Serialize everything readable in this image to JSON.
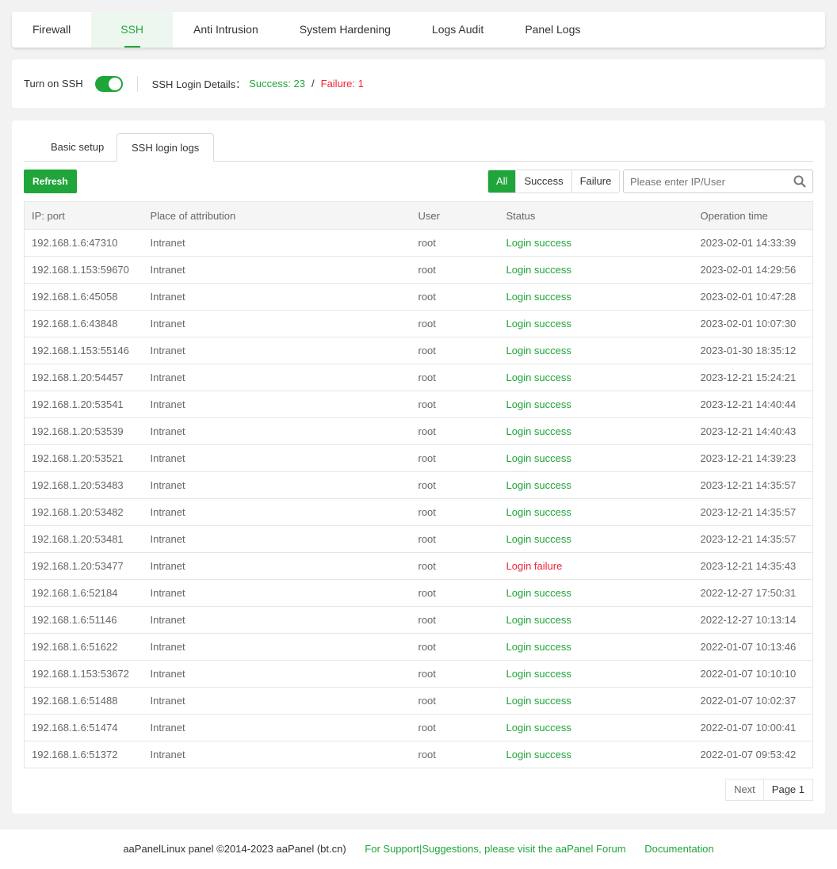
{
  "nav": [
    "Firewall",
    "SSH",
    "Anti Intrusion",
    "System Hardening",
    "Logs Audit",
    "Panel Logs"
  ],
  "ssh": {
    "toggle_label": "Turn on SSH",
    "enabled": true,
    "details_label": "SSH Login Details：",
    "success": "Success: 23",
    "sep": "/",
    "failure": "Failure: 1"
  },
  "subtabs": [
    "Basic setup",
    "SSH login logs"
  ],
  "toolbar": {
    "refresh": "Refresh",
    "filters": [
      "All",
      "Success",
      "Failure"
    ],
    "search_placeholder": "Please enter IP/User"
  },
  "table": {
    "headers": [
      "IP: port",
      "Place of attribution",
      "User",
      "Status",
      "Operation time"
    ],
    "rows": [
      [
        "192.168.1.6:47310",
        "Intranet",
        "root",
        "Login success",
        "2023-02-01 14:33:39"
      ],
      [
        "192.168.1.153:59670",
        "Intranet",
        "root",
        "Login success",
        "2023-02-01 14:29:56"
      ],
      [
        "192.168.1.6:45058",
        "Intranet",
        "root",
        "Login success",
        "2023-02-01 10:47:28"
      ],
      [
        "192.168.1.6:43848",
        "Intranet",
        "root",
        "Login success",
        "2023-02-01 10:07:30"
      ],
      [
        "192.168.1.153:55146",
        "Intranet",
        "root",
        "Login success",
        "2023-01-30 18:35:12"
      ],
      [
        "192.168.1.20:54457",
        "Intranet",
        "root",
        "Login success",
        "2023-12-21 15:24:21"
      ],
      [
        "192.168.1.20:53541",
        "Intranet",
        "root",
        "Login success",
        "2023-12-21 14:40:44"
      ],
      [
        "192.168.1.20:53539",
        "Intranet",
        "root",
        "Login success",
        "2023-12-21 14:40:43"
      ],
      [
        "192.168.1.20:53521",
        "Intranet",
        "root",
        "Login success",
        "2023-12-21 14:39:23"
      ],
      [
        "192.168.1.20:53483",
        "Intranet",
        "root",
        "Login success",
        "2023-12-21 14:35:57"
      ],
      [
        "192.168.1.20:53482",
        "Intranet",
        "root",
        "Login success",
        "2023-12-21 14:35:57"
      ],
      [
        "192.168.1.20:53481",
        "Intranet",
        "root",
        "Login success",
        "2023-12-21 14:35:57"
      ],
      [
        "192.168.1.20:53477",
        "Intranet",
        "root",
        "Login failure",
        "2023-12-21 14:35:43"
      ],
      [
        "192.168.1.6:52184",
        "Intranet",
        "root",
        "Login success",
        "2022-12-27 17:50:31"
      ],
      [
        "192.168.1.6:51146",
        "Intranet",
        "root",
        "Login success",
        "2022-12-27 10:13:14"
      ],
      [
        "192.168.1.6:51622",
        "Intranet",
        "root",
        "Login success",
        "2022-01-07 10:13:46"
      ],
      [
        "192.168.1.153:53672",
        "Intranet",
        "root",
        "Login success",
        "2022-01-07 10:10:10"
      ],
      [
        "192.168.1.6:51488",
        "Intranet",
        "root",
        "Login success",
        "2022-01-07 10:02:37"
      ],
      [
        "192.168.1.6:51474",
        "Intranet",
        "root",
        "Login success",
        "2022-01-07 10:00:41"
      ],
      [
        "192.168.1.6:51372",
        "Intranet",
        "root",
        "Login success",
        "2022-01-07 09:53:42"
      ]
    ]
  },
  "pager": {
    "next": "Next",
    "page": "Page 1"
  },
  "footer": {
    "copyright": "aaPanelLinux panel ©2014-2023 aaPanel (bt.cn)",
    "support": "For Support|Suggestions, please visit the aaPanel Forum",
    "docs": "Documentation"
  },
  "colors": {
    "accent": "#20a53a",
    "failure": "#f0243a"
  }
}
